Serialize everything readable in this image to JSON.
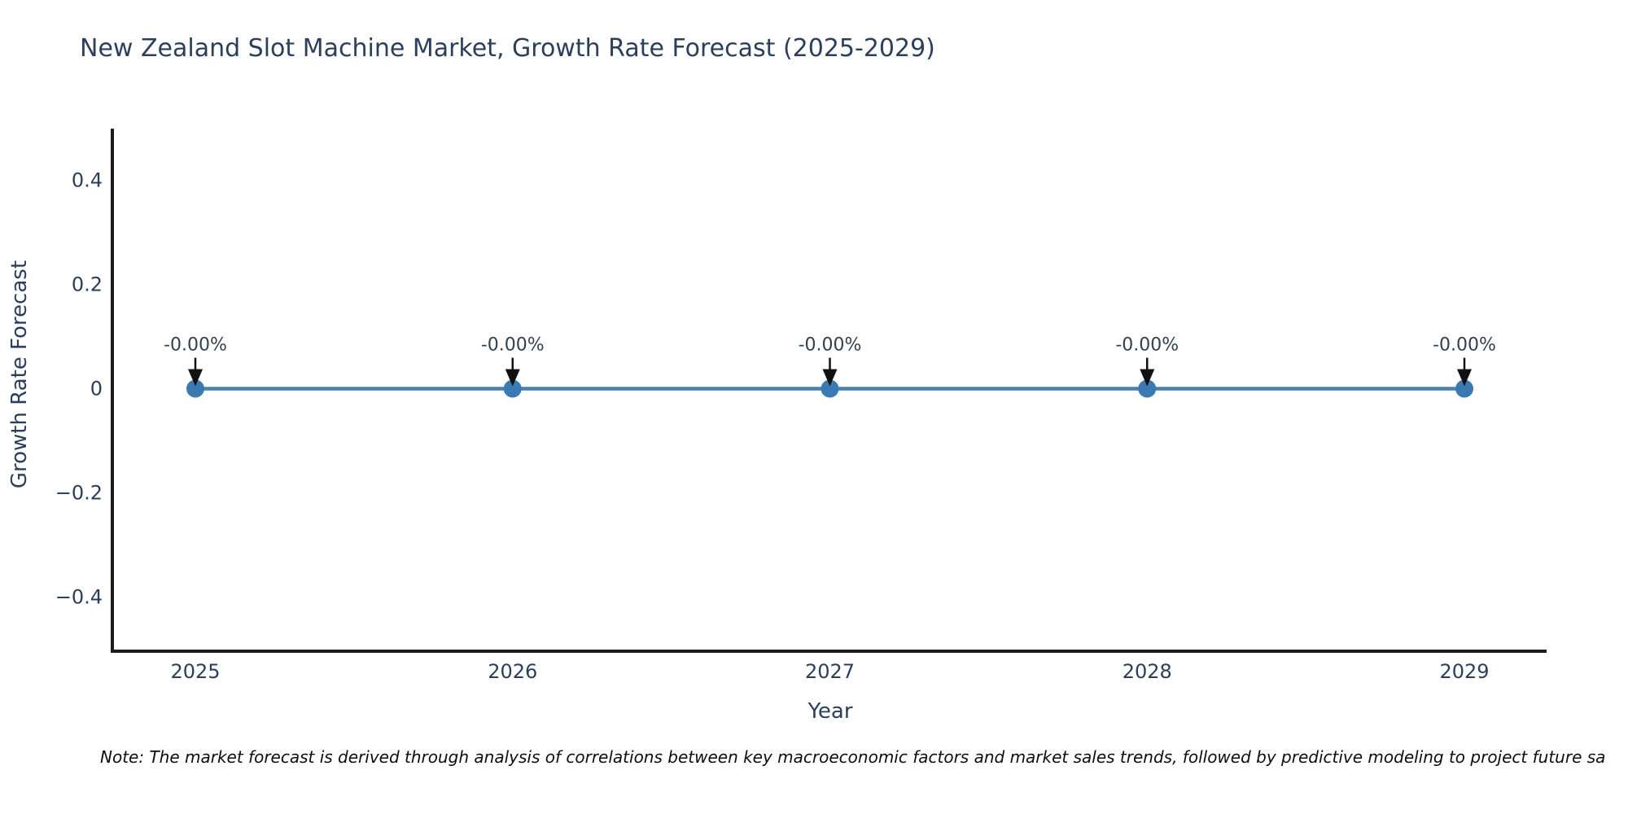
{
  "chart_data": {
    "type": "line",
    "title": "New Zealand Slot Machine Market, Growth Rate Forecast (2025-2029)",
    "xlabel": "Year",
    "ylabel": "Growth Rate Forecast",
    "categories": [
      "2025",
      "2026",
      "2027",
      "2028",
      "2029"
    ],
    "series": [
      {
        "name": "Growth Rate Forecast",
        "values": [
          -0.0,
          -0.0,
          -0.0,
          -0.0,
          -0.0
        ]
      }
    ],
    "point_labels": [
      "-0.00%",
      "-0.00%",
      "-0.00%",
      "-0.00%",
      "-0.00%"
    ],
    "yticks": {
      "values": [
        0.4,
        0.2,
        0,
        -0.2,
        -0.4
      ],
      "labels": [
        "0.4",
        "0.2",
        "0",
        "−0.2",
        "−0.4"
      ]
    },
    "ylim": [
      -0.5,
      0.5
    ],
    "grid": false,
    "legend": "none",
    "colors": {
      "line": "#4a80ad",
      "marker": "#3b79b2",
      "axis": "#1c1c1c",
      "arrow": "#111111",
      "text": "#2b3f5c"
    }
  },
  "note": {
    "text": "Note: The market forecast is derived through analysis of correlations between key macroeconomic factors and market sales trends, followed by predictive modeling to project future sa"
  }
}
